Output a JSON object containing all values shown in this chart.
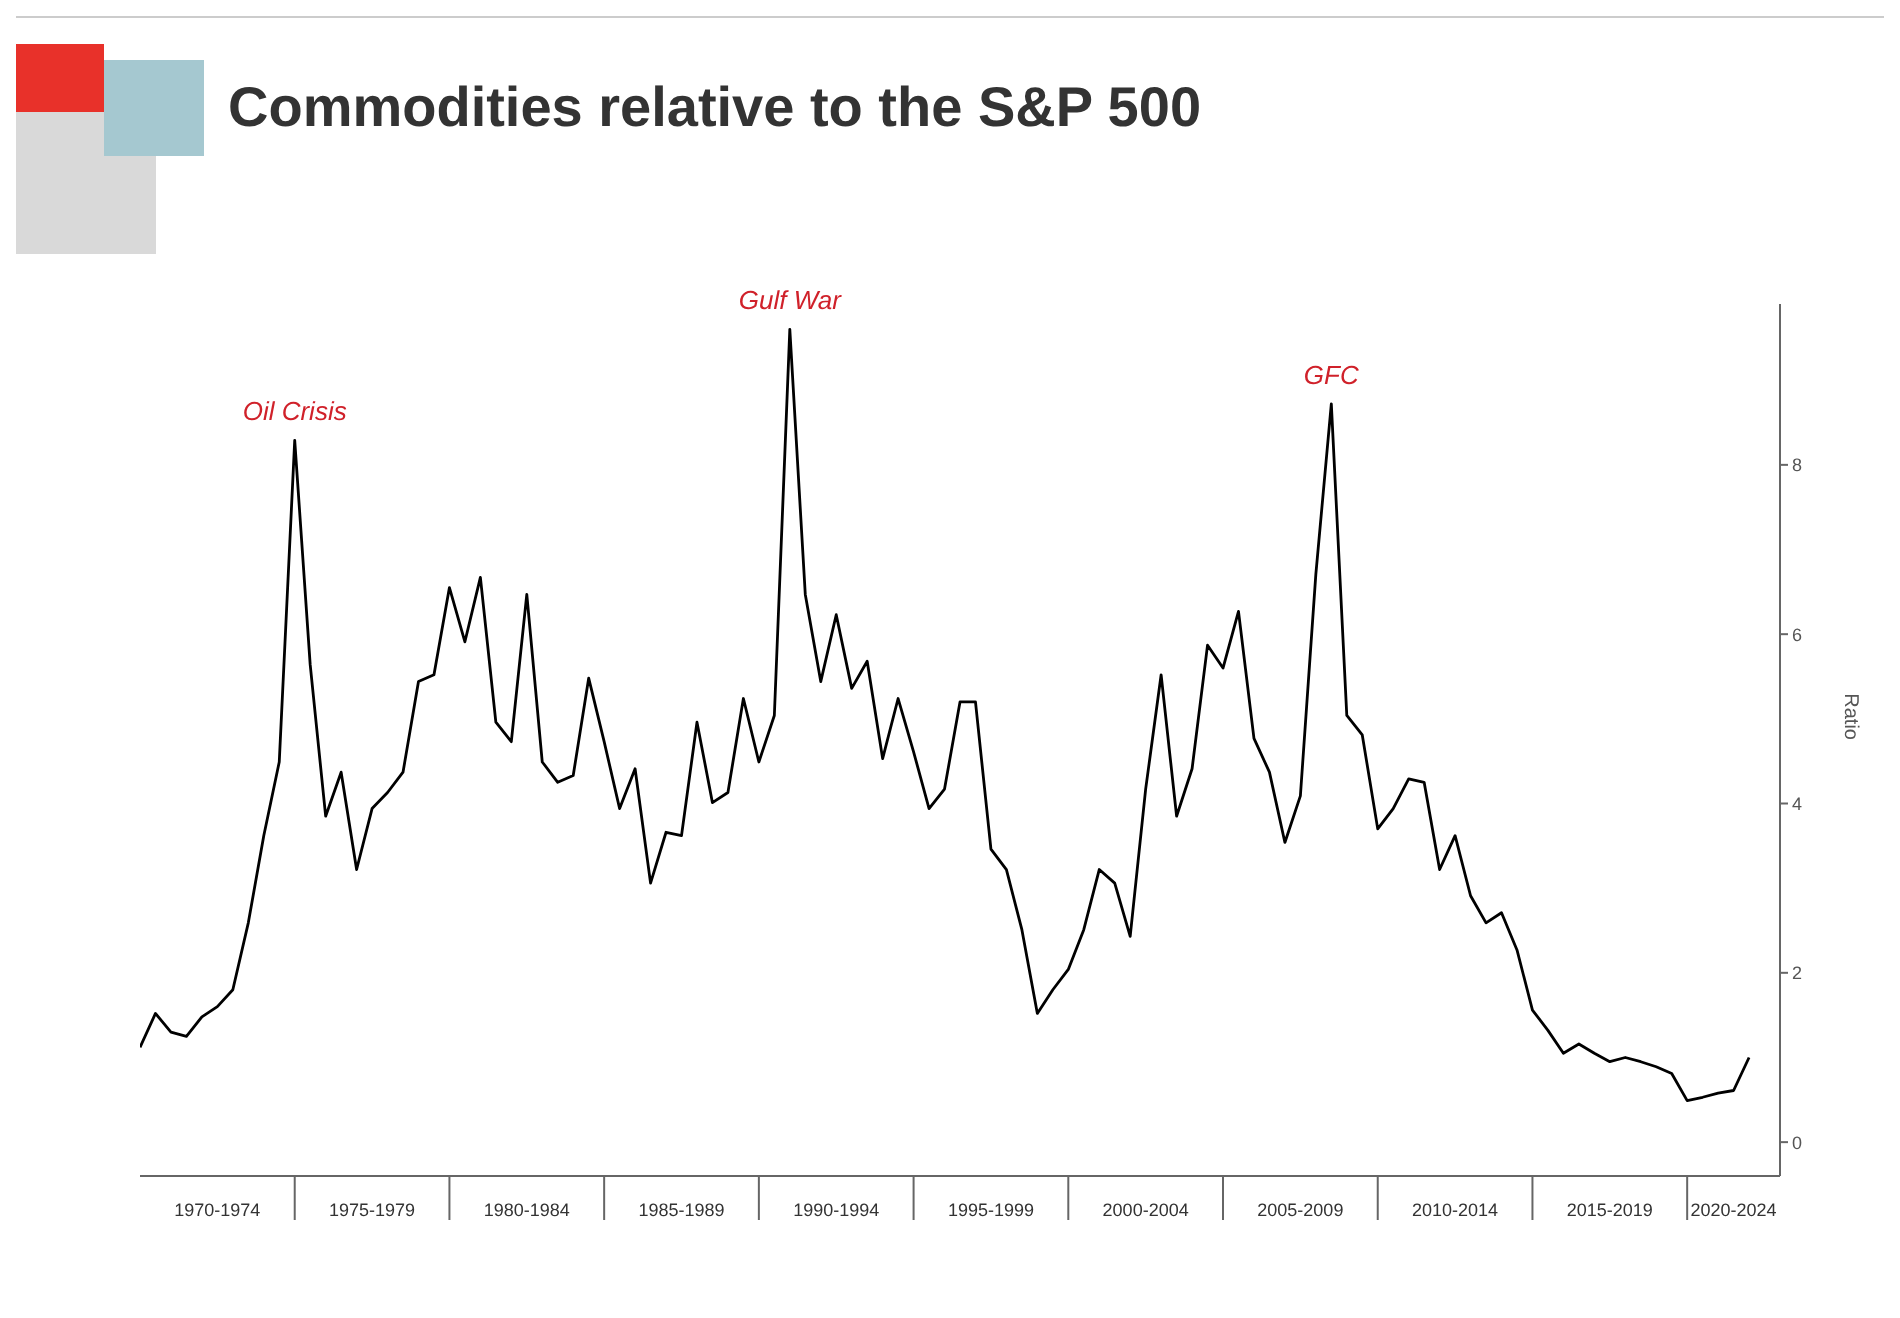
{
  "chart_data": {
    "type": "line",
    "title": "Commodities relative to the S&P 500",
    "ylabel": "Ratio",
    "annotations": [
      {
        "text": "Oil Crisis",
        "y": 8.29
      },
      {
        "text": "Gulf War",
        "y": 9.6
      },
      {
        "text": "GFC",
        "y": 8.72
      }
    ],
    "categories": [
      null,
      null,
      null,
      null,
      null,
      "1970-1974",
      null,
      null,
      null,
      null,
      null,
      null,
      null,
      null,
      null,
      "1975-1979",
      null,
      null,
      null,
      null,
      null,
      null,
      null,
      null,
      null,
      "1980-1984",
      null,
      null,
      null,
      null,
      null,
      null,
      null,
      null,
      null,
      "1985-1989",
      null,
      null,
      null,
      null,
      null,
      null,
      null,
      null,
      null,
      "1990-1994",
      null,
      null,
      null,
      null,
      null,
      null,
      null,
      null,
      null,
      "1995-1999",
      null,
      null,
      null,
      null,
      null,
      null,
      null,
      null,
      null,
      "2000-2004",
      null,
      null,
      null,
      null,
      null,
      null,
      null,
      null,
      null,
      "2005-2009",
      null,
      null,
      null,
      null,
      null,
      null,
      null,
      null,
      null,
      "2010-2014",
      null,
      null,
      null,
      null,
      null,
      null,
      null,
      null,
      null,
      "2015-2019",
      null,
      null,
      null,
      null,
      null,
      null,
      null,
      "2020-2024",
      null
    ],
    "series": [
      {
        "color": "#000000",
        "values": [
          1.12,
          1.52,
          1.3,
          1.25,
          1.48,
          1.6,
          1.8,
          2.59,
          3.62,
          4.49,
          8.29,
          5.64,
          3.85,
          4.37,
          3.22,
          3.94,
          4.13,
          4.37,
          5.44,
          5.52,
          6.55,
          5.91,
          6.67,
          4.96,
          4.73,
          6.47,
          4.49,
          4.25,
          4.33,
          5.48,
          4.73,
          3.94,
          4.41,
          3.06,
          3.66,
          3.62,
          4.96,
          4.01,
          4.13,
          5.24,
          4.49,
          5.04,
          9.6,
          6.47,
          5.44,
          6.23,
          5.36,
          5.68,
          4.53,
          5.24,
          4.61,
          3.94,
          4.17,
          5.2,
          5.2,
          3.46,
          3.22,
          2.51,
          1.52,
          1.8,
          2.04,
          2.51,
          3.22,
          3.06,
          2.43,
          4.17,
          5.52,
          3.85,
          4.41,
          5.87,
          5.6,
          6.27,
          4.77,
          4.37,
          3.54,
          4.09,
          6.71,
          8.72,
          5.04,
          4.81,
          3.7,
          3.94,
          4.29,
          4.25,
          3.22,
          3.62,
          2.91,
          2.59,
          2.71,
          2.27,
          1.56,
          1.32,
          1.05,
          1.16,
          1.05,
          0.95,
          1.0,
          0.95,
          0.89,
          0.81,
          0.49,
          0.53,
          0.58,
          0.61,
          1.0
        ]
      }
    ],
    "ylim": [
      -0.4,
      9.9
    ],
    "yticks": [
      0,
      2,
      4,
      6,
      8
    ],
    "grid": false,
    "marker": "none",
    "line_style": "solid"
  }
}
